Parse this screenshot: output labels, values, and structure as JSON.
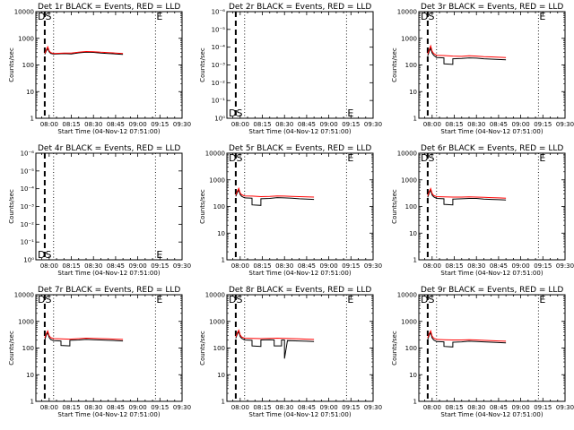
{
  "figure": {
    "xaxis_ticks": [
      "08:00",
      "08:15",
      "08:30",
      "08:45",
      "09:00",
      "09:15",
      "09:30"
    ],
    "xlabel": "Start Time (04-Nov-12 07:51:00)",
    "ylabel": "Counts/sec",
    "markers": {
      "left": "DS",
      "right": "E"
    },
    "colors": {
      "events": "#000000",
      "lld": "#ff0000"
    }
  },
  "chart_data": [
    {
      "type": "line",
      "title": "Det 1r BLACK = Events, RED = LLD",
      "ylim": [
        1,
        10000
      ],
      "yscale": "log",
      "yticks": [
        "1",
        "10",
        "100",
        "1000",
        "10000"
      ],
      "xlim": [
        "07:51",
        "09:30"
      ],
      "dashed_x": "07:57",
      "dotted_x": [
        "08:03",
        "09:12"
      ],
      "ds_y": 10000,
      "e_y": 10000,
      "series": [
        {
          "name": "Events",
          "color": "#000000",
          "x": [
            "07:57",
            "07:58",
            "07:59",
            "08:00",
            "08:01",
            "08:03",
            "08:10",
            "08:15",
            "08:20",
            "08:25",
            "08:30",
            "08:35",
            "08:40",
            "08:45",
            "08:50"
          ],
          "values": [
            250,
            330,
            420,
            310,
            270,
            255,
            265,
            260,
            285,
            300,
            295,
            280,
            270,
            260,
            250
          ]
        },
        {
          "name": "LLD",
          "color": "#ff0000",
          "x": [
            "07:57",
            "07:58",
            "07:59",
            "08:00",
            "08:01",
            "08:03",
            "08:10",
            "08:15",
            "08:20",
            "08:25",
            "08:30",
            "08:35",
            "08:40",
            "08:45",
            "08:50"
          ],
          "values": [
            270,
            360,
            480,
            340,
            290,
            270,
            280,
            280,
            300,
            320,
            315,
            300,
            290,
            280,
            270
          ]
        }
      ]
    },
    {
      "type": "line",
      "title": "Det 2r BLACK = Events, RED = LLD",
      "ylim": [
        1,
        1.00001
      ],
      "yscale": "linear",
      "yticks": [
        "10⁰",
        "10⁻¹",
        "10⁻²",
        "10⁻³",
        "10⁻⁴",
        "10⁻⁵",
        "10⁻⁶"
      ],
      "xlim": [
        "07:51",
        "09:30"
      ],
      "dashed_x": "07:57",
      "dotted_x": [
        "08:03",
        "09:12"
      ],
      "ds_y": 1,
      "e_y": 1,
      "series": []
    },
    {
      "type": "line",
      "title": "Det 3r BLACK = Events, RED = LLD",
      "ylim": [
        1,
        10000
      ],
      "yscale": "log",
      "yticks": [
        "1",
        "10",
        "100",
        "1000",
        "10000"
      ],
      "xlim": [
        "07:51",
        "09:30"
      ],
      "dashed_x": "07:57",
      "dotted_x": [
        "08:03",
        "09:12"
      ],
      "ds_y": 10000,
      "e_y": 10000,
      "series": [
        {
          "name": "Events",
          "color": "#000000",
          "x": [
            "07:57",
            "07:58",
            "07:59",
            "08:00",
            "08:01",
            "08:03",
            "08:08",
            "08:08",
            "08:14",
            "08:14",
            "08:20",
            "08:25",
            "08:30",
            "08:35",
            "08:40",
            "08:45",
            "08:50"
          ],
          "values": [
            220,
            320,
            430,
            280,
            230,
            190,
            185,
            110,
            105,
            170,
            175,
            185,
            180,
            170,
            165,
            160,
            155
          ]
        },
        {
          "name": "LLD",
          "color": "#ff0000",
          "x": [
            "07:57",
            "07:58",
            "07:59",
            "08:00",
            "08:01",
            "08:03",
            "08:08",
            "08:14",
            "08:20",
            "08:25",
            "08:30",
            "08:35",
            "08:40",
            "08:45",
            "08:50"
          ],
          "values": [
            260,
            380,
            520,
            330,
            270,
            230,
            225,
            215,
            210,
            220,
            215,
            205,
            200,
            195,
            190
          ]
        }
      ]
    },
    {
      "type": "line",
      "title": "Det 4r BLACK = Events, RED = LLD",
      "ylim": [
        1,
        1.00001
      ],
      "yscale": "linear",
      "yticks": [
        "10⁰",
        "10⁻¹",
        "10⁻²",
        "10⁻³",
        "10⁻⁴",
        "10⁻⁵",
        "10⁻⁶"
      ],
      "xlim": [
        "07:51",
        "09:30"
      ],
      "dashed_x": "07:57",
      "dotted_x": [
        "08:03",
        "09:12"
      ],
      "ds_y": 1,
      "e_y": 1,
      "series": []
    },
    {
      "type": "line",
      "title": "Det 5r BLACK = Events, RED = LLD",
      "ylim": [
        1,
        10000
      ],
      "yscale": "log",
      "yticks": [
        "1",
        "10",
        "100",
        "1000",
        "10000"
      ],
      "xlim": [
        "07:51",
        "09:30"
      ],
      "dashed_x": "07:57",
      "dotted_x": [
        "08:03",
        "09:12"
      ],
      "ds_y": 10000,
      "e_y": 10000,
      "series": [
        {
          "name": "Events",
          "color": "#000000",
          "x": [
            "07:57",
            "07:58",
            "07:59",
            "08:00",
            "08:01",
            "08:03",
            "08:08",
            "08:08",
            "08:14",
            "08:14",
            "08:20",
            "08:25",
            "08:30",
            "08:35",
            "08:40",
            "08:45",
            "08:50"
          ],
          "values": [
            240,
            330,
            420,
            280,
            240,
            210,
            205,
            115,
            110,
            195,
            200,
            215,
            210,
            205,
            195,
            190,
            185
          ]
        },
        {
          "name": "LLD",
          "color": "#ff0000",
          "x": [
            "07:57",
            "07:58",
            "07:59",
            "08:00",
            "08:01",
            "08:03",
            "08:08",
            "08:14",
            "08:20",
            "08:25",
            "08:30",
            "08:35",
            "08:40",
            "08:45",
            "08:50"
          ],
          "values": [
            270,
            370,
            480,
            320,
            275,
            250,
            245,
            235,
            240,
            250,
            245,
            240,
            235,
            230,
            225
          ]
        }
      ]
    },
    {
      "type": "line",
      "title": "Det 6r BLACK = Events, RED = LLD",
      "ylim": [
        1,
        10000
      ],
      "yscale": "log",
      "yticks": [
        "1",
        "10",
        "100",
        "1000",
        "10000"
      ],
      "xlim": [
        "07:51",
        "09:30"
      ],
      "dashed_x": "07:57",
      "dotted_x": [
        "08:03",
        "09:12"
      ],
      "ds_y": 10000,
      "e_y": 10000,
      "series": [
        {
          "name": "Events",
          "color": "#000000",
          "x": [
            "07:57",
            "07:58",
            "07:59",
            "08:00",
            "08:01",
            "08:03",
            "08:08",
            "08:08",
            "08:14",
            "08:14",
            "08:20",
            "08:25",
            "08:30",
            "08:35",
            "08:40",
            "08:45",
            "08:50"
          ],
          "values": [
            220,
            320,
            420,
            270,
            230,
            200,
            195,
            120,
            115,
            190,
            195,
            200,
            200,
            190,
            185,
            180,
            175
          ]
        },
        {
          "name": "LLD",
          "color": "#ff0000",
          "x": [
            "07:57",
            "07:58",
            "07:59",
            "08:00",
            "08:01",
            "08:03",
            "08:08",
            "08:14",
            "08:20",
            "08:25",
            "08:30",
            "08:35",
            "08:40",
            "08:45",
            "08:50"
          ],
          "values": [
            250,
            360,
            470,
            310,
            260,
            235,
            230,
            225,
            225,
            230,
            225,
            220,
            215,
            210,
            205
          ]
        }
      ]
    },
    {
      "type": "line",
      "title": "Det 7r BLACK = Events, RED = LLD",
      "ylim": [
        1,
        10000
      ],
      "yscale": "log",
      "yticks": [
        "1",
        "10",
        "100",
        "1000",
        "10000"
      ],
      "xlim": [
        "07:51",
        "09:30"
      ],
      "dashed_x": "07:57",
      "dotted_x": [
        "08:03",
        "09:12"
      ],
      "ds_y": 10000,
      "e_y": 10000,
      "series": [
        {
          "name": "Events",
          "color": "#000000",
          "x": [
            "07:57",
            "07:58",
            "07:59",
            "08:00",
            "08:01",
            "08:03",
            "08:08",
            "08:08",
            "08:14",
            "08:14",
            "08:20",
            "08:25",
            "08:30",
            "08:35",
            "08:40",
            "08:45",
            "08:50"
          ],
          "values": [
            200,
            300,
            380,
            250,
            210,
            190,
            185,
            125,
            120,
            195,
            200,
            210,
            205,
            200,
            195,
            190,
            185
          ]
        },
        {
          "name": "LLD",
          "color": "#ff0000",
          "x": [
            "07:57",
            "07:58",
            "07:59",
            "08:00",
            "08:01",
            "08:03",
            "08:08",
            "08:14",
            "08:20",
            "08:25",
            "08:30",
            "08:35",
            "08:40",
            "08:45",
            "08:50"
          ],
          "values": [
            240,
            340,
            440,
            290,
            245,
            225,
            220,
            215,
            225,
            235,
            230,
            225,
            220,
            215,
            210
          ]
        }
      ]
    },
    {
      "type": "line",
      "title": "Det 8r BLACK = Events, RED = LLD",
      "ylim": [
        1,
        10000
      ],
      "yscale": "log",
      "yticks": [
        "1",
        "10",
        "100",
        "1000",
        "10000"
      ],
      "xlim": [
        "07:51",
        "09:30"
      ],
      "dashed_x": "07:57",
      "dotted_x": [
        "08:03",
        "09:12"
      ],
      "ds_y": 10000,
      "e_y": 10000,
      "series": [
        {
          "name": "Events",
          "color": "#000000",
          "x": [
            "07:57",
            "07:58",
            "07:59",
            "08:00",
            "08:01",
            "08:03",
            "08:08",
            "08:08",
            "08:14",
            "08:14",
            "08:20",
            "08:23",
            "08:23",
            "08:28",
            "08:28",
            "08:30",
            "08:30",
            "08:32",
            "08:40",
            "08:45",
            "08:50"
          ],
          "values": [
            230,
            330,
            420,
            270,
            230,
            200,
            195,
            120,
            115,
            200,
            205,
            200,
            120,
            120,
            200,
            200,
            40,
            190,
            185,
            180,
            175
          ]
        },
        {
          "name": "LLD",
          "color": "#ff0000",
          "x": [
            "07:57",
            "07:58",
            "07:59",
            "08:00",
            "08:01",
            "08:03",
            "08:08",
            "08:14",
            "08:20",
            "08:25",
            "08:30",
            "08:35",
            "08:40",
            "08:45",
            "08:50"
          ],
          "values": [
            260,
            370,
            470,
            310,
            260,
            235,
            230,
            225,
            230,
            235,
            230,
            225,
            220,
            215,
            210
          ]
        }
      ]
    },
    {
      "type": "line",
      "title": "Det 9r BLACK = Events, RED = LLD",
      "ylim": [
        1,
        10000
      ],
      "yscale": "log",
      "yticks": [
        "1",
        "10",
        "100",
        "1000",
        "10000"
      ],
      "xlim": [
        "07:51",
        "09:30"
      ],
      "dashed_x": "07:57",
      "dotted_x": [
        "08:03",
        "09:12"
      ],
      "ds_y": 10000,
      "e_y": 10000,
      "series": [
        {
          "name": "Events",
          "color": "#000000",
          "x": [
            "07:57",
            "07:58",
            "07:59",
            "08:00",
            "08:01",
            "08:03",
            "08:08",
            "08:08",
            "08:14",
            "08:14",
            "08:20",
            "08:25",
            "08:30",
            "08:35",
            "08:40",
            "08:45",
            "08:50"
          ],
          "values": [
            210,
            300,
            380,
            240,
            200,
            175,
            170,
            115,
            110,
            165,
            170,
            180,
            175,
            170,
            165,
            160,
            155
          ]
        },
        {
          "name": "LLD",
          "color": "#ff0000",
          "x": [
            "07:57",
            "07:58",
            "07:59",
            "08:00",
            "08:01",
            "08:03",
            "08:08",
            "08:14",
            "08:20",
            "08:25",
            "08:30",
            "08:35",
            "08:40",
            "08:45",
            "08:50"
          ],
          "values": [
            240,
            340,
            440,
            280,
            235,
            210,
            205,
            200,
            200,
            205,
            200,
            195,
            190,
            185,
            180
          ]
        }
      ]
    }
  ]
}
